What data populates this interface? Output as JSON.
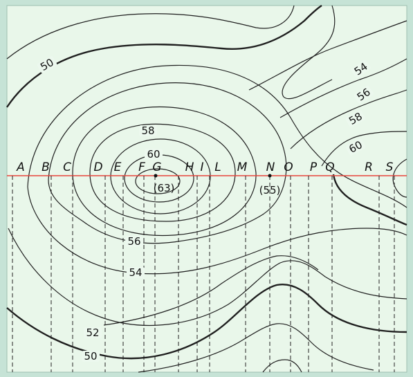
{
  "section_letters": [
    "A",
    "B",
    "C",
    "D",
    "E",
    "F",
    "G",
    "H",
    "I",
    "L",
    "M",
    "N",
    "O",
    "P",
    "Q",
    "R",
    "S"
  ],
  "contour_labels": [
    "50",
    "54",
    "56",
    "58",
    "60",
    "58",
    "60",
    "56",
    "54",
    "52",
    "50"
  ],
  "spot_heights": [
    "(63)",
    "(55)"
  ],
  "colors": {
    "background": "#d8efe4",
    "frame": "#c6e3d6",
    "contour": "#1f1f1f",
    "section_line": "#e8433a"
  }
}
